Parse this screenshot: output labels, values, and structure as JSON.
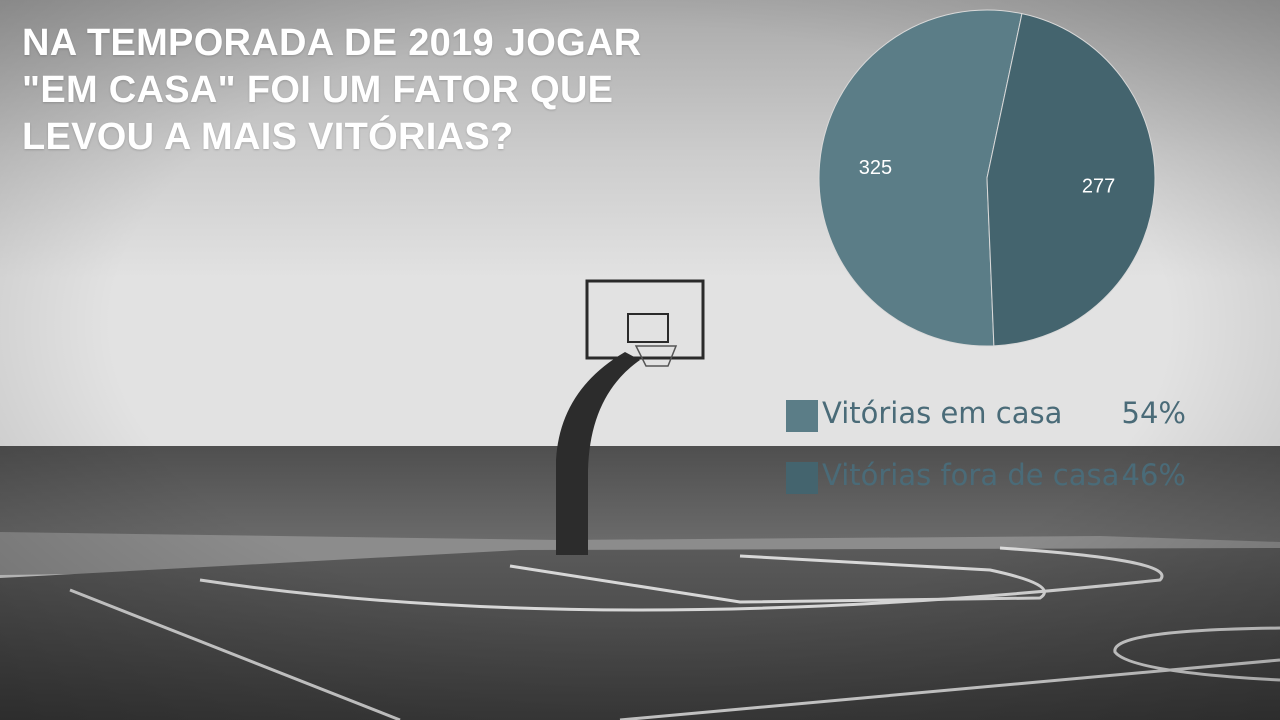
{
  "title": "NA TEMPORADA DE 2019 JOGAR \"EM CASA\" FOI UM FATOR QUE LEVOU A MAIS VITÓRIAS?",
  "background": {
    "subject": "basketball-court-by-the-sea",
    "tone": "grayscale"
  },
  "chart_data": {
    "type": "pie",
    "title": "",
    "slices": [
      {
        "label": "Vitórias em casa",
        "value": 325,
        "value_label": "325",
        "percent_label": "54%",
        "color": "#5b7d87"
      },
      {
        "label": "Vitórias fora de casa",
        "value": 277,
        "value_label": "277",
        "percent_label": "46%",
        "color": "#44646e"
      }
    ],
    "start_angle_deg": 12,
    "direction": "counterclockwise",
    "legend": {
      "placement": "bottom-right",
      "show_percent": true
    },
    "data_labels": "inside"
  }
}
